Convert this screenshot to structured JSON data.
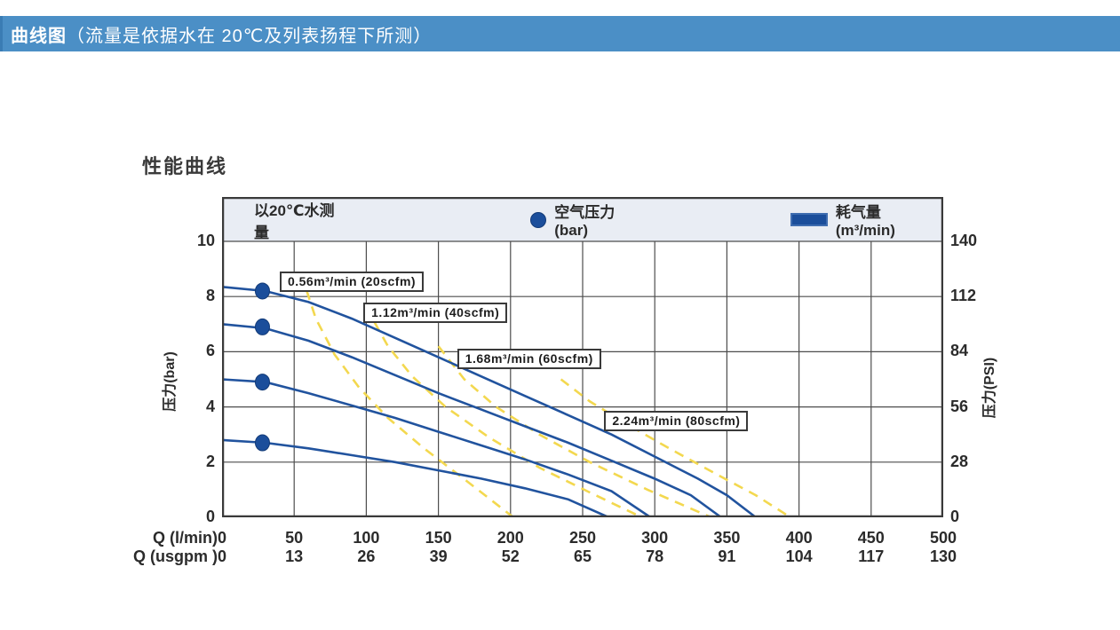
{
  "header": {
    "title_bold": "曲线图",
    "title_rest": "（流量是依据水在 20℃及列表扬程下所测）"
  },
  "chart": {
    "title": "性能曲线",
    "legend": {
      "note": "以20℃水测量",
      "air_pressure_label": "空气压力 (bar)",
      "air_consumption_label": "耗气量 (m³/min)"
    }
  },
  "colors": {
    "header_bg": "#4b8fc6",
    "curve_blue": "#21539e",
    "dot_blue": "#1b4e9b",
    "consumption_yellow": "#f3d84f",
    "grid": "#4d4d4d",
    "border": "#3a3a3a",
    "legend_bg": "#e9edf4"
  },
  "chart_data": {
    "type": "line",
    "title": "性能曲线",
    "grid": true,
    "x_axis": {
      "row1_label": "Q (l/min)",
      "row2_label": "Q (usgpm )",
      "range": [
        0,
        500
      ],
      "ticks_lmin": [
        0,
        50,
        100,
        150,
        200,
        250,
        300,
        350,
        400,
        450,
        500
      ],
      "ticks_usgpm": [
        0,
        13,
        26,
        39,
        52,
        65,
        78,
        91,
        104,
        117,
        130
      ]
    },
    "y_axis_left": {
      "label": "压力(bar)",
      "range": [
        0,
        10
      ],
      "ticks": [
        10,
        8,
        6,
        4,
        2,
        0
      ]
    },
    "y_axis_right": {
      "label": "压力(PSI)",
      "range": [
        0,
        140
      ],
      "ticks": [
        140,
        112,
        84,
        56,
        28,
        0
      ]
    },
    "series": [
      {
        "name": "performance-air-8.3bar",
        "style": "solid",
        "points": [
          [
            0,
            8.35
          ],
          [
            30,
            8.2
          ],
          [
            60,
            7.8
          ],
          [
            90,
            7.2
          ],
          [
            120,
            6.5
          ],
          [
            150,
            5.8
          ],
          [
            180,
            5.1
          ],
          [
            210,
            4.4
          ],
          [
            240,
            3.7
          ],
          [
            270,
            3.0
          ],
          [
            300,
            2.2
          ],
          [
            330,
            1.4
          ],
          [
            350,
            0.8
          ],
          [
            370,
            0
          ]
        ]
      },
      {
        "name": "performance-air-7bar",
        "style": "solid",
        "points": [
          [
            0,
            7.0
          ],
          [
            30,
            6.85
          ],
          [
            60,
            6.4
          ],
          [
            90,
            5.8
          ],
          [
            120,
            5.15
          ],
          [
            150,
            4.5
          ],
          [
            180,
            3.9
          ],
          [
            210,
            3.3
          ],
          [
            240,
            2.7
          ],
          [
            270,
            2.05
          ],
          [
            300,
            1.4
          ],
          [
            325,
            0.8
          ],
          [
            346,
            0
          ]
        ]
      },
      {
        "name": "performance-air-5bar",
        "style": "solid",
        "points": [
          [
            0,
            5.0
          ],
          [
            30,
            4.9
          ],
          [
            60,
            4.5
          ],
          [
            90,
            4.05
          ],
          [
            120,
            3.6
          ],
          [
            150,
            3.1
          ],
          [
            180,
            2.6
          ],
          [
            210,
            2.1
          ],
          [
            240,
            1.55
          ],
          [
            270,
            0.95
          ],
          [
            297,
            0
          ]
        ]
      },
      {
        "name": "performance-air-2.8bar",
        "style": "solid",
        "points": [
          [
            0,
            2.8
          ],
          [
            30,
            2.7
          ],
          [
            60,
            2.5
          ],
          [
            90,
            2.25
          ],
          [
            120,
            2.0
          ],
          [
            150,
            1.7
          ],
          [
            180,
            1.4
          ],
          [
            210,
            1.05
          ],
          [
            240,
            0.65
          ],
          [
            268,
            0
          ]
        ]
      },
      {
        "name": "consumption-0.56",
        "style": "dashed",
        "points": [
          [
            55,
            8.8
          ],
          [
            65,
            7.2
          ],
          [
            78,
            5.9
          ],
          [
            95,
            4.7
          ],
          [
            115,
            3.6
          ],
          [
            140,
            2.5
          ],
          [
            170,
            1.3
          ],
          [
            202,
            0
          ]
        ]
      },
      {
        "name": "consumption-1.12",
        "style": "dashed",
        "points": [
          [
            100,
            7.6
          ],
          [
            115,
            6.2
          ],
          [
            132,
            5.1
          ],
          [
            155,
            4.0
          ],
          [
            185,
            2.9
          ],
          [
            220,
            1.8
          ],
          [
            255,
            0.9
          ],
          [
            291,
            0
          ]
        ]
      },
      {
        "name": "consumption-1.68",
        "style": "dashed",
        "points": [
          [
            150,
            6.2
          ],
          [
            168,
            5.0
          ],
          [
            190,
            4.0
          ],
          [
            220,
            3.0
          ],
          [
            255,
            2.0
          ],
          [
            295,
            1.0
          ],
          [
            339,
            0
          ]
        ]
      },
      {
        "name": "consumption-2.24",
        "style": "dashed",
        "points": [
          [
            235,
            5.0
          ],
          [
            255,
            4.2
          ],
          [
            280,
            3.4
          ],
          [
            310,
            2.5
          ],
          [
            345,
            1.5
          ],
          [
            370,
            0.8
          ],
          [
            394,
            0
          ]
        ]
      }
    ],
    "air_pressure_dots": [
      {
        "q": 28,
        "p": 8.2
      },
      {
        "q": 28,
        "p": 6.9
      },
      {
        "q": 28,
        "p": 4.9
      },
      {
        "q": 28,
        "p": 2.7
      }
    ],
    "consumption_labels": [
      {
        "text": "0.56m³/min (20scfm)",
        "anchor_q": 40,
        "anchor_p": 8.9
      },
      {
        "text": "1.12m³/min (40scfm)",
        "anchor_q": 98,
        "anchor_p": 7.78
      },
      {
        "text": "1.68m³/min (60scfm)",
        "anchor_q": 163,
        "anchor_p": 6.1
      },
      {
        "text": "2.24m³/min (80scfm)",
        "anchor_q": 265,
        "anchor_p": 3.85
      }
    ]
  }
}
